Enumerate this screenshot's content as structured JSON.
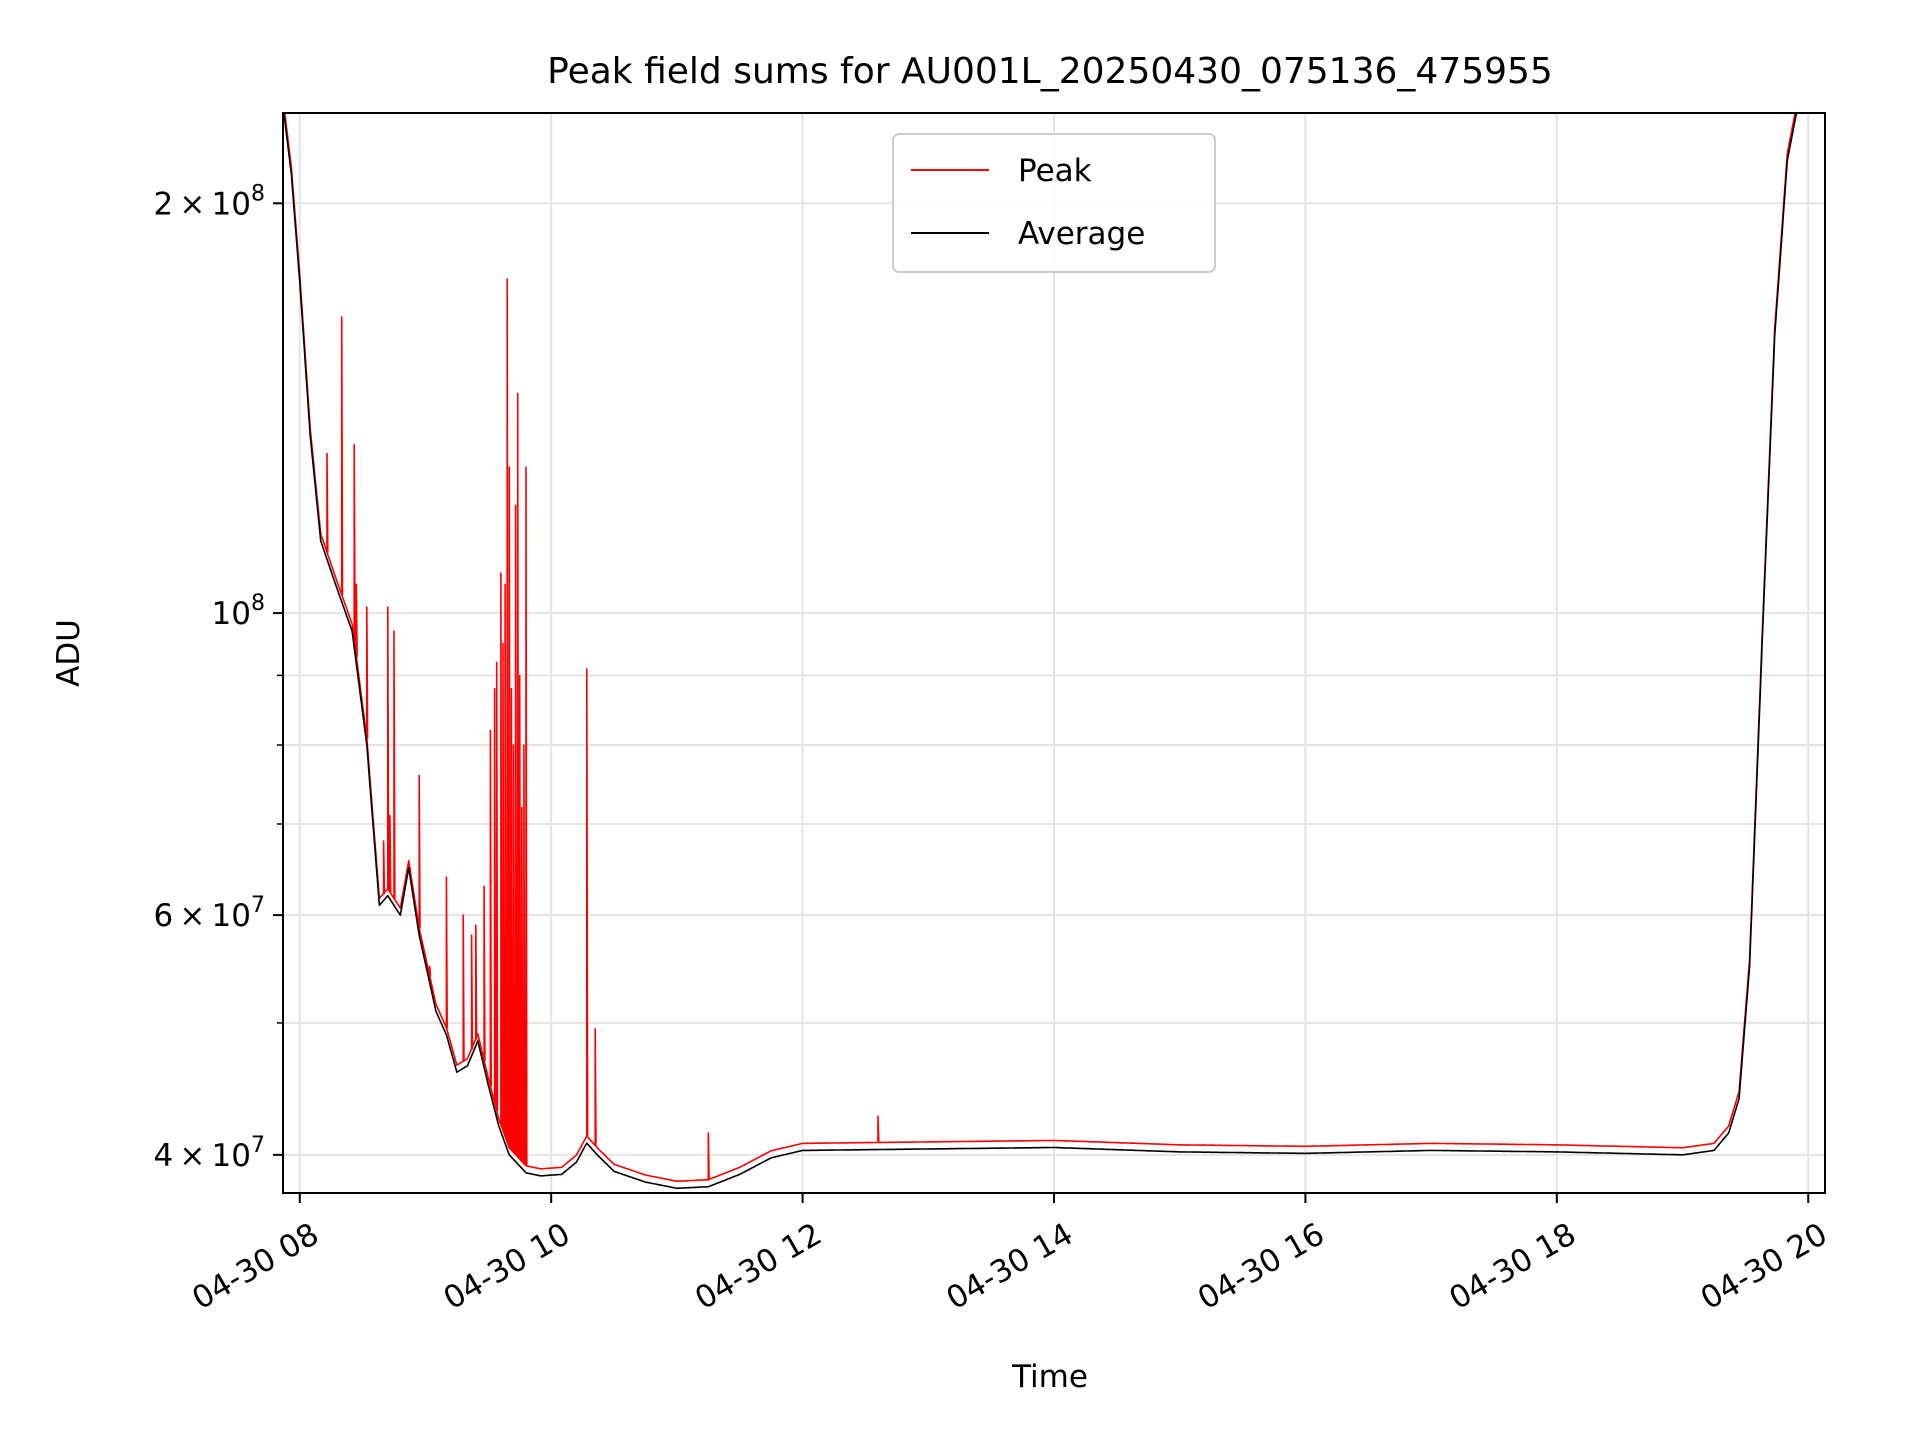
{
  "chart_data": {
    "type": "line",
    "title": "Peak field sums for AU001L_20250430_075136_475955",
    "xlabel": "Time",
    "ylabel": "ADU",
    "x_range": [
      "2025-04-30 07:52",
      "2025-04-30 20:08"
    ],
    "ylim": [
      37500000,
      233000000
    ],
    "y_scale": "log",
    "grid": true,
    "legend_position": "upper-center",
    "x_ticks": [
      {
        "t": "2025-04-30 08:00",
        "label": "04-30 08"
      },
      {
        "t": "2025-04-30 10:00",
        "label": "04-30 10"
      },
      {
        "t": "2025-04-30 12:00",
        "label": "04-30 12"
      },
      {
        "t": "2025-04-30 14:00",
        "label": "04-30 14"
      },
      {
        "t": "2025-04-30 16:00",
        "label": "04-30 16"
      },
      {
        "t": "2025-04-30 18:00",
        "label": "04-30 18"
      },
      {
        "t": "2025-04-30 20:00",
        "label": "04-30 20"
      }
    ],
    "y_ticks": [
      {
        "value": 40000000,
        "mantissa": "4",
        "exponent": "7"
      },
      {
        "value": 60000000,
        "mantissa": "6",
        "exponent": "7"
      },
      {
        "value": 100000000,
        "mantissa": "",
        "exponent": "8"
      },
      {
        "value": 200000000,
        "mantissa": "2",
        "exponent": "8"
      }
    ],
    "y_minor_ticks": [
      50000000,
      70000000,
      80000000,
      90000000
    ],
    "series": [
      {
        "name": "Average",
        "color": "#000000",
        "points": [
          [
            "2025-04-30 07:52",
            236000000
          ],
          [
            "2025-04-30 07:56",
            210000000
          ],
          [
            "2025-04-30 08:00",
            175000000
          ],
          [
            "2025-04-30 08:05",
            135000000
          ],
          [
            "2025-04-30 08:10",
            113000000
          ],
          [
            "2025-04-30 08:18",
            104000000
          ],
          [
            "2025-04-30 08:25",
            97000000
          ],
          [
            "2025-04-30 08:32",
            80000000
          ],
          [
            "2025-04-30 08:38",
            61000000
          ],
          [
            "2025-04-30 08:42",
            62000000
          ],
          [
            "2025-04-30 08:48",
            60000000
          ],
          [
            "2025-04-30 08:52",
            65000000
          ],
          [
            "2025-04-30 08:57",
            58000000
          ],
          [
            "2025-04-30 09:05",
            51000000
          ],
          [
            "2025-04-30 09:10",
            49000000
          ],
          [
            "2025-04-30 09:15",
            46000000
          ],
          [
            "2025-04-30 09:20",
            46500000
          ],
          [
            "2025-04-30 09:25",
            48500000
          ],
          [
            "2025-04-30 09:30",
            45000000
          ],
          [
            "2025-04-30 09:35",
            42000000
          ],
          [
            "2025-04-30 09:40",
            40000000
          ],
          [
            "2025-04-30 09:48",
            38800000
          ],
          [
            "2025-04-30 09:55",
            38600000
          ],
          [
            "2025-04-30 10:05",
            38700000
          ],
          [
            "2025-04-30 10:12",
            39500000
          ],
          [
            "2025-04-30 10:17",
            40800000
          ],
          [
            "2025-04-30 10:22",
            40000000
          ],
          [
            "2025-04-30 10:30",
            38900000
          ],
          [
            "2025-04-30 10:45",
            38200000
          ],
          [
            "2025-04-30 11:00",
            37800000
          ],
          [
            "2025-04-30 11:15",
            37900000
          ],
          [
            "2025-04-30 11:30",
            38700000
          ],
          [
            "2025-04-30 11:45",
            39800000
          ],
          [
            "2025-04-30 12:00",
            40300000
          ],
          [
            "2025-04-30 13:00",
            40400000
          ],
          [
            "2025-04-30 14:00",
            40500000
          ],
          [
            "2025-04-30 15:00",
            40200000
          ],
          [
            "2025-04-30 16:00",
            40100000
          ],
          [
            "2025-04-30 17:00",
            40300000
          ],
          [
            "2025-04-30 18:00",
            40200000
          ],
          [
            "2025-04-30 19:00",
            40000000
          ],
          [
            "2025-04-30 19:15",
            40300000
          ],
          [
            "2025-04-30 19:22",
            41500000
          ],
          [
            "2025-04-30 19:27",
            44000000
          ],
          [
            "2025-04-30 19:32",
            55000000
          ],
          [
            "2025-04-30 19:38",
            95000000
          ],
          [
            "2025-04-30 19:44",
            160000000
          ],
          [
            "2025-04-30 19:50",
            215000000
          ],
          [
            "2025-04-30 19:56",
            240000000
          ]
        ]
      },
      {
        "name": "Peak",
        "color": "#ff0000",
        "baseline_offset_ratio": 1.012,
        "spikes": [
          [
            "2025-04-30 08:13",
            131000000
          ],
          [
            "2025-04-30 08:20",
            165000000
          ],
          [
            "2025-04-30 08:26",
            133000000
          ],
          [
            "2025-04-30 08:27",
            105000000
          ],
          [
            "2025-04-30 08:32",
            101000000
          ],
          [
            "2025-04-30 08:40",
            68000000
          ],
          [
            "2025-04-30 08:42",
            101000000
          ],
          [
            "2025-04-30 08:43",
            71000000
          ],
          [
            "2025-04-30 08:45",
            97000000
          ],
          [
            "2025-04-30 08:57",
            76000000
          ],
          [
            "2025-04-30 09:02",
            55000000
          ],
          [
            "2025-04-30 09:10",
            64000000
          ],
          [
            "2025-04-30 09:18",
            60000000
          ],
          [
            "2025-04-30 09:22",
            58000000
          ],
          [
            "2025-04-30 09:24",
            59000000
          ],
          [
            "2025-04-30 09:28",
            63000000
          ],
          [
            "2025-04-30 09:31",
            82000000
          ],
          [
            "2025-04-30 09:33",
            88000000
          ],
          [
            "2025-04-30 09:34",
            92000000
          ],
          [
            "2025-04-30 09:36",
            107000000
          ],
          [
            "2025-04-30 09:37",
            95000000
          ],
          [
            "2025-04-30 09:38",
            105000000
          ],
          [
            "2025-04-30 09:39",
            176000000
          ],
          [
            "2025-04-30 09:40",
            128000000
          ],
          [
            "2025-04-30 09:41",
            88000000
          ],
          [
            "2025-04-30 09:42",
            80000000
          ],
          [
            "2025-04-30 09:43",
            120000000
          ],
          [
            "2025-04-30 09:44",
            145000000
          ],
          [
            "2025-04-30 09:45",
            90000000
          ],
          [
            "2025-04-30 09:46",
            72000000
          ],
          [
            "2025-04-30 09:47",
            80000000
          ],
          [
            "2025-04-30 09:48",
            128000000
          ],
          [
            "2025-04-30 10:17",
            91000000
          ],
          [
            "2025-04-30 10:21",
            49500000
          ],
          [
            "2025-04-30 11:15",
            41500000
          ],
          [
            "2025-04-30 12:36",
            42700000
          ]
        ]
      }
    ]
  }
}
